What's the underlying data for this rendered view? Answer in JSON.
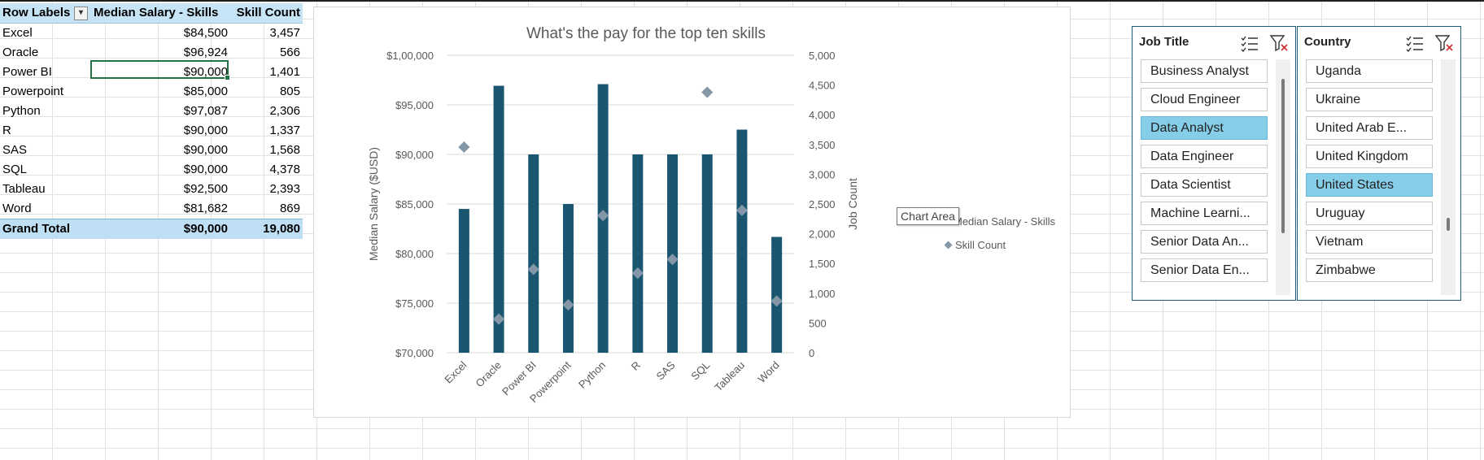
{
  "pivot": {
    "headers": {
      "row_labels": "Row Labels",
      "median_salary": "Median Salary - Skills",
      "skill_count": "Skill Count"
    },
    "rows": [
      {
        "label": "Excel",
        "salary": "$84,500",
        "count": "3,457"
      },
      {
        "label": "Oracle",
        "salary": "$96,924",
        "count": "566"
      },
      {
        "label": "Power BI",
        "salary": "$90,000",
        "count": "1,401"
      },
      {
        "label": "Powerpoint",
        "salary": "$85,000",
        "count": "805"
      },
      {
        "label": "Python",
        "salary": "$97,087",
        "count": "2,306"
      },
      {
        "label": "R",
        "salary": "$90,000",
        "count": "1,337"
      },
      {
        "label": "SAS",
        "salary": "$90,000",
        "count": "1,568"
      },
      {
        "label": "SQL",
        "salary": "$90,000",
        "count": "4,378"
      },
      {
        "label": "Tableau",
        "salary": "$92,500",
        "count": "2,393"
      },
      {
        "label": "Word",
        "salary": "$81,682",
        "count": "869"
      }
    ],
    "total": {
      "label": "Grand Total",
      "salary": "$90,000",
      "count": "19,080"
    },
    "filter_icon": "filter-dropdown-icon"
  },
  "chart_data": {
    "type": "bar",
    "title": "What's the pay for the top ten skills",
    "categories": [
      "Excel",
      "Oracle",
      "Power BI",
      "Powerpoint",
      "Python",
      "R",
      "SAS",
      "SQL",
      "Tableau",
      "Word"
    ],
    "series": [
      {
        "name": "Median Salary - Skills",
        "type": "bar",
        "axis": "left",
        "color": "#1a5670",
        "values": [
          84500,
          96924,
          90000,
          85000,
          97087,
          90000,
          90000,
          90000,
          92500,
          81682
        ]
      },
      {
        "name": "Skill Count",
        "type": "scatter",
        "axis": "right",
        "color": "#8497a8",
        "values": [
          3457,
          566,
          1401,
          805,
          2306,
          1337,
          1568,
          4378,
          2393,
          869
        ]
      }
    ],
    "ylabel": "Median Salary ($USD)",
    "y2label": "Job Count",
    "ylim": [
      70000,
      100000
    ],
    "y2lim": [
      0,
      5000
    ],
    "yticks": [
      "$70,000",
      "$75,000",
      "$80,000",
      "$85,000",
      "$90,000",
      "$95,000",
      "$1,00,000"
    ],
    "y2ticks": [
      "0",
      "500",
      "1,000",
      "1,500",
      "2,000",
      "2,500",
      "3,000",
      "3,500",
      "4,000",
      "4,500",
      "5,000"
    ],
    "legend_position": "right",
    "legend": [
      "Median Salary - Skills",
      "Skill Count"
    ],
    "grid": true
  },
  "tooltip": "Chart Area",
  "slicers": [
    {
      "title": "Job Title",
      "items": [
        {
          "label": "Business Analyst",
          "selected": false
        },
        {
          "label": "Cloud Engineer",
          "selected": false
        },
        {
          "label": "Data Analyst",
          "selected": true
        },
        {
          "label": "Data Engineer",
          "selected": false
        },
        {
          "label": "Data Scientist",
          "selected": false
        },
        {
          "label": "Machine Learni...",
          "selected": false
        },
        {
          "label": "Senior Data An...",
          "selected": false
        },
        {
          "label": "Senior Data En...",
          "selected": false
        }
      ]
    },
    {
      "title": "Country",
      "items": [
        {
          "label": "Uganda",
          "selected": false
        },
        {
          "label": "Ukraine",
          "selected": false
        },
        {
          "label": "United Arab E...",
          "selected": false
        },
        {
          "label": "United Kingdom",
          "selected": false
        },
        {
          "label": "United States",
          "selected": true
        },
        {
          "label": "Uruguay",
          "selected": false
        },
        {
          "label": "Vietnam",
          "selected": false
        },
        {
          "label": "Zimbabwe",
          "selected": false
        }
      ]
    }
  ],
  "colors": {
    "bar": "#1a5670",
    "marker": "#8497a8",
    "selected_item": "#86cde8",
    "header_fill": "#c6e4f5"
  }
}
